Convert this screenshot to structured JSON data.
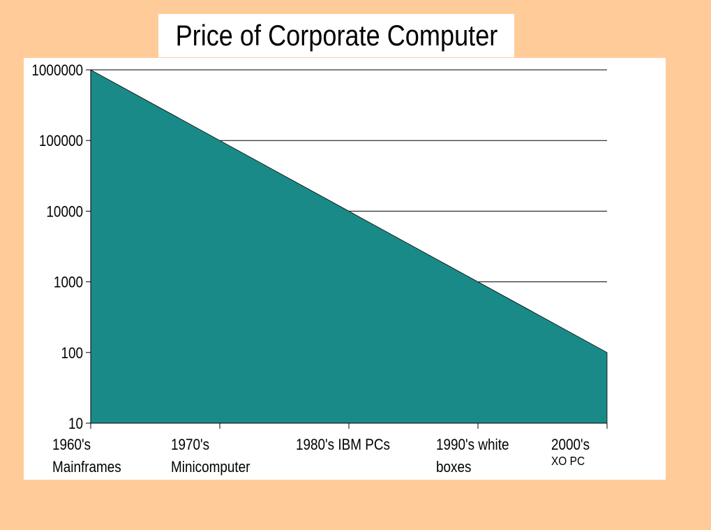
{
  "chart_data": {
    "type": "area",
    "title": "Price of Corporate Computer",
    "xlabel": "",
    "ylabel": "",
    "y_scale": "log",
    "ylim": [
      10,
      1000000
    ],
    "y_ticks": [
      "10",
      "100",
      "1000",
      "10000",
      "100000",
      "1000000"
    ],
    "categories": [
      {
        "line1": "1960's",
        "line2": "Mainframes"
      },
      {
        "line1": "1970's",
        "line2": "Minicomputer"
      },
      {
        "line1": "1980's IBM PCs",
        "line2": ""
      },
      {
        "line1": "1990's white",
        "line2": "boxes"
      },
      {
        "line1": "2000's",
        "line2": "XO PC"
      }
    ],
    "values": [
      1000000,
      100000,
      10000,
      1000,
      100
    ],
    "grid": true,
    "legend": "none",
    "colors": {
      "fill": "#1a8a88",
      "background": "#ffcc99",
      "panel": "#ffffff"
    }
  }
}
